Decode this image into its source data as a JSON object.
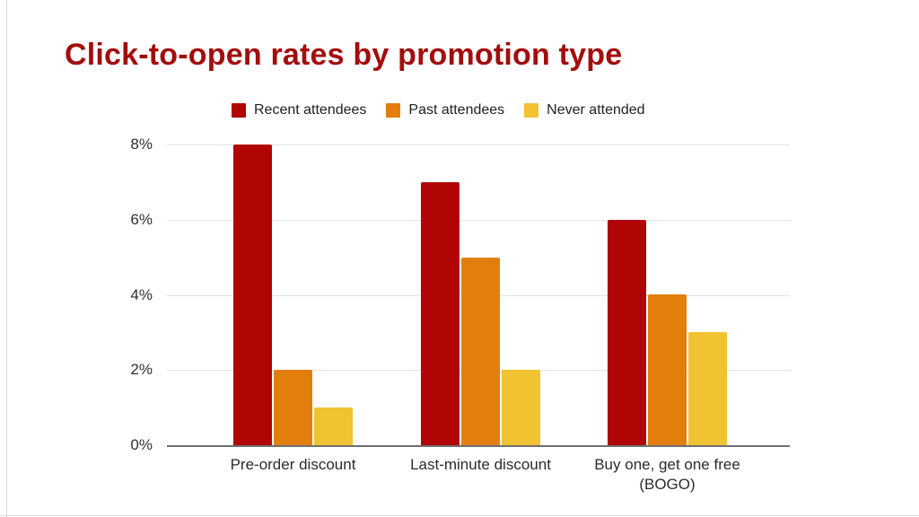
{
  "slide": {
    "title": "Click-to-open rates by promotion type",
    "title_color": "#a30d0d"
  },
  "chart_data": {
    "type": "bar",
    "title": "Click-to-open rates by promotion type",
    "categories": [
      "Pre-order discount",
      "Last-minute discount",
      "Buy one, get one free (BOGO)"
    ],
    "series": [
      {
        "name": "Recent attendees",
        "color": "#b10404",
        "values": [
          8,
          7,
          6
        ]
      },
      {
        "name": "Past attendees",
        "color": "#e27f0c",
        "values": [
          2,
          5,
          4
        ]
      },
      {
        "name": "Never attended",
        "color": "#f1c232",
        "values": [
          1,
          2,
          3
        ]
      }
    ],
    "xlabel": "",
    "ylabel": "",
    "ylim": [
      0,
      8
    ],
    "ytick_step": 2,
    "yticks": [
      "0%",
      "2%",
      "4%",
      "6%",
      "8%"
    ],
    "grid": true,
    "legend_position": "top"
  },
  "colors": {
    "gridline": "#e3e3e3",
    "axis_line": "#6f6f6f",
    "tick_text": "#2f2f2f",
    "legend_text": "#212121",
    "slide_edge": "#dadada"
  }
}
